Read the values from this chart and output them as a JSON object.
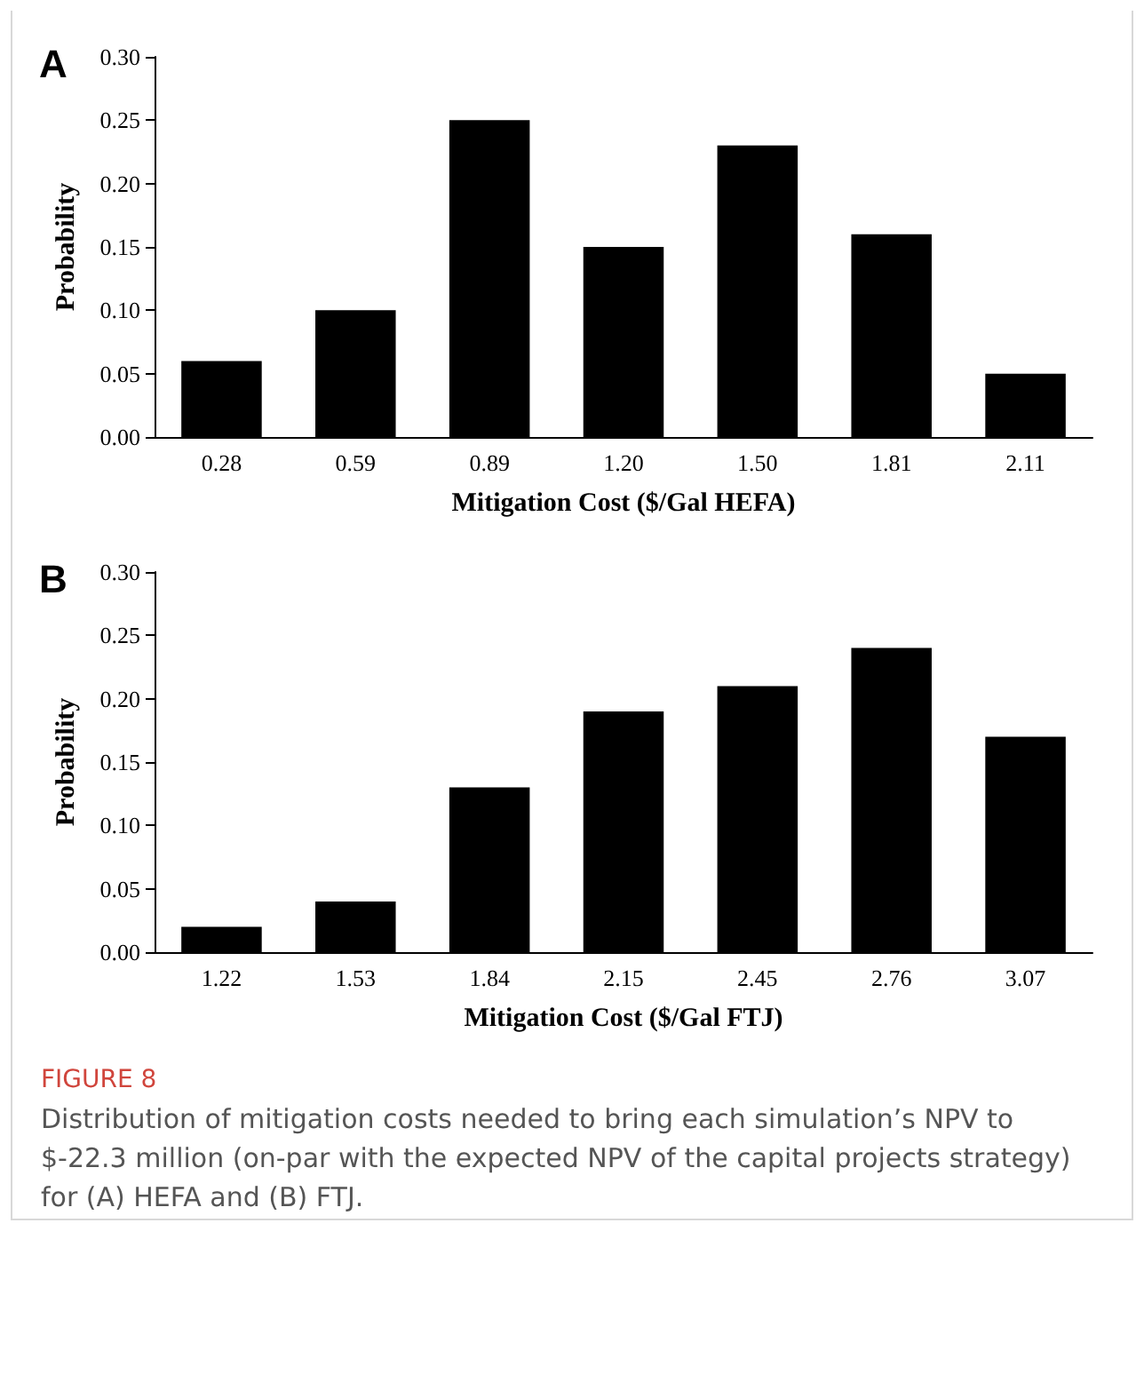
{
  "chart_data": [
    {
      "type": "bar",
      "title": "A",
      "xlabel": "Mitigation Cost ($/Gal HEFA)",
      "ylabel": "Probability",
      "categories": [
        "0.28",
        "0.59",
        "0.89",
        "1.20",
        "1.50",
        "1.81",
        "2.11"
      ],
      "values": [
        0.06,
        0.1,
        0.25,
        0.15,
        0.23,
        0.16,
        0.05
      ],
      "color": "#000000",
      "ylim": [
        0,
        0.3
      ],
      "yticks": [
        {
          "value": 0,
          "label": "0.00"
        },
        {
          "value": 0.05,
          "label": "0.05"
        },
        {
          "value": 0.1,
          "label": "0.10"
        },
        {
          "value": 0.15,
          "label": "0.15"
        },
        {
          "value": 0.2,
          "label": "0.20"
        },
        {
          "value": 0.25,
          "label": "0.25"
        },
        {
          "value": 0.3,
          "label": "0.30"
        }
      ],
      "grid": false
    },
    {
      "type": "bar",
      "title": "B",
      "xlabel": "Mitigation Cost ($/Gal FTJ)",
      "ylabel": "Probability",
      "categories": [
        "1.22",
        "1.53",
        "1.84",
        "2.15",
        "2.45",
        "2.76",
        "3.07"
      ],
      "values": [
        0.02,
        0.04,
        0.13,
        0.19,
        0.21,
        0.24,
        0.17
      ],
      "color": "#000000",
      "ylim": [
        0,
        0.3
      ],
      "yticks": [
        {
          "value": 0,
          "label": "0.00"
        },
        {
          "value": 0.05,
          "label": "0.05"
        },
        {
          "value": 0.1,
          "label": "0.10"
        },
        {
          "value": 0.15,
          "label": "0.15"
        },
        {
          "value": 0.2,
          "label": "0.20"
        },
        {
          "value": 0.25,
          "label": "0.25"
        },
        {
          "value": 0.3,
          "label": "0.30"
        }
      ],
      "grid": false,
      "annotations": [
        "FIGURE 8",
        "Distribution of mitigation costs needed to bring each simulation’s NPV to $-22.3 million (on-par with the expected NPV of the capital projects strategy) for (A) HEFA and (B) FTJ."
      ]
    }
  ]
}
